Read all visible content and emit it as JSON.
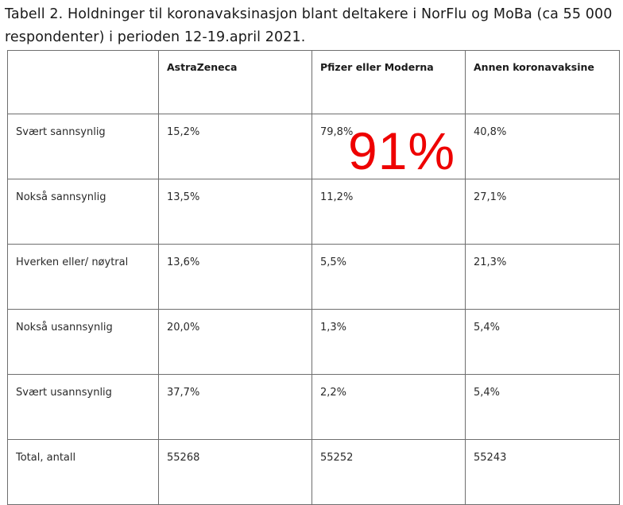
{
  "caption": {
    "line1": "Tabell 2. Holdninger til koronavaksinasjon blant deltakere i NorFlu og MoBa (ca 55 000",
    "line2": "respondenter) i perioden 12-19.april 2021."
  },
  "table": {
    "headers": [
      "",
      "AstraZeneca",
      "Pfizer eller Moderna",
      "Annen koronavaksine"
    ],
    "rows": [
      {
        "label": "Svært sannsynlig",
        "values": [
          "15,2%",
          "79,8%",
          "40,8%"
        ]
      },
      {
        "label": "Nokså sannsynlig",
        "values": [
          "13,5%",
          "11,2%",
          "27,1%"
        ]
      },
      {
        "label": "Hverken eller/ nøytral",
        "values": [
          "13,6%",
          "5,5%",
          "21,3%"
        ]
      },
      {
        "label": "Nokså usannsynlig",
        "values": [
          "20,0%",
          "1,3%",
          "5,4%"
        ]
      },
      {
        "label": "Svært usannsynlig",
        "values": [
          "37,7%",
          "2,2%",
          "5,4%"
        ]
      },
      {
        "label": "Total, antall",
        "values": [
          "55268",
          "55252",
          "55243"
        ]
      }
    ]
  },
  "overlay": {
    "text": "91%",
    "color": "#ee0000"
  }
}
